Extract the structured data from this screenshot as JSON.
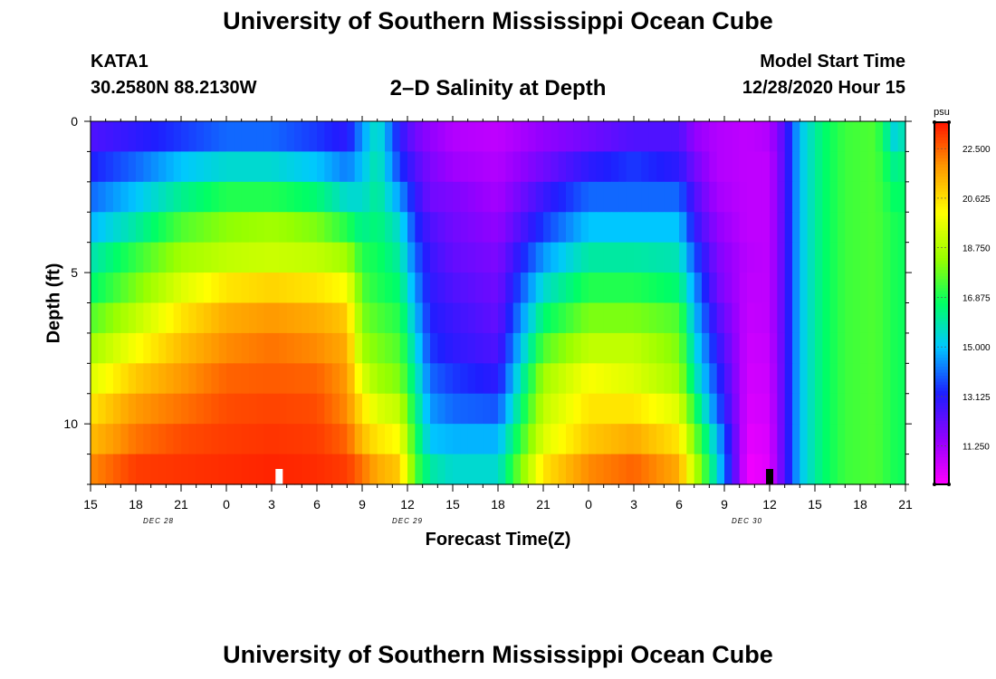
{
  "header": {
    "title": "University of Southern Mississippi Ocean Cube",
    "station": "KATA1",
    "coords": "30.2580N 88.2130W",
    "subtitle": "2–D Salinity at Depth",
    "start_label": "Model Start Time",
    "start_value": "12/28/2020 Hour 15",
    "footer_title": "University of Southern Mississippi Ocean Cube"
  },
  "chart_data": {
    "type": "heatmap",
    "title": "2–D Salinity at Depth",
    "xlabel": "Forecast Time(Z)",
    "ylabel": "Depth (ft)",
    "x_range_hours": [
      0,
      54
    ],
    "y_range_ft": [
      0,
      12
    ],
    "y_ticks": [
      "0",
      "5",
      "10"
    ],
    "x_ticks": [
      "15",
      "18",
      "21",
      "0",
      "3",
      "6",
      "9",
      "12",
      "15",
      "18",
      "21",
      "0",
      "3",
      "6",
      "9",
      "12",
      "15",
      "18",
      "21"
    ],
    "date_labels": [
      {
        "text": "DEC 28",
        "hour": 4.5
      },
      {
        "text": "DEC 29",
        "hour": 21
      },
      {
        "text": "DEC 30",
        "hour": 43.5
      }
    ],
    "time_markers": [
      {
        "hour": 12.5,
        "color": "#ffffff"
      },
      {
        "hour": 45,
        "color": "#000000"
      }
    ],
    "colorbar": {
      "unit": "psu",
      "min": 9.8,
      "max": 23.5,
      "tick_labels": [
        "22.500",
        "20.625",
        "18.750",
        "16.875",
        "15.000",
        "13.125",
        "11.250"
      ],
      "tick_values": [
        22.5,
        20.625,
        18.75,
        16.875,
        15.0,
        13.125,
        11.25
      ]
    },
    "depth_levels_ft": [
      0.5,
      1.5,
      2.5,
      3.5,
      4.5,
      5.5,
      6.5,
      7.5,
      8.5,
      9.5,
      10.5,
      11.5
    ],
    "profiles": [
      {
        "hour": 0,
        "salinity": [
          12.5,
          13.2,
          14.0,
          14.8,
          15.8,
          16.5,
          17.5,
          18.5,
          19.5,
          20.5,
          21.2,
          22.0
        ]
      },
      {
        "hour": 3,
        "salinity": [
          13.0,
          14.0,
          15.0,
          16.0,
          17.2,
          18.0,
          19.0,
          20.0,
          21.0,
          21.8,
          22.3,
          23.0
        ]
      },
      {
        "hour": 6,
        "salinity": [
          13.5,
          15.0,
          16.2,
          17.5,
          18.5,
          19.5,
          20.5,
          21.2,
          21.8,
          22.3,
          22.8,
          23.1
        ]
      },
      {
        "hour": 9,
        "salinity": [
          14.0,
          15.5,
          17.0,
          18.2,
          19.0,
          20.5,
          21.5,
          22.0,
          22.5,
          22.8,
          23.0,
          23.2
        ]
      },
      {
        "hour": 12,
        "salinity": [
          14.0,
          15.5,
          17.0,
          18.5,
          19.2,
          20.8,
          21.8,
          22.3,
          22.6,
          22.9,
          23.1,
          23.3
        ]
      },
      {
        "hour": 15,
        "salinity": [
          13.5,
          15.0,
          16.5,
          18.0,
          19.0,
          20.5,
          21.5,
          22.0,
          22.5,
          22.8,
          23.0,
          23.2
        ]
      },
      {
        "hour": 17,
        "salinity": [
          13.0,
          14.2,
          15.5,
          17.0,
          18.5,
          20.0,
          21.0,
          21.5,
          21.8,
          22.0,
          22.5,
          23.0
        ]
      },
      {
        "hour": 18,
        "salinity": [
          14.5,
          15.0,
          15.5,
          16.2,
          17.0,
          17.5,
          18.0,
          18.5,
          19.5,
          20.5,
          21.2,
          22.3
        ]
      },
      {
        "hour": 19,
        "salinity": [
          15.8,
          16.0,
          16.2,
          16.5,
          16.8,
          17.0,
          17.5,
          18.0,
          18.5,
          19.5,
          20.5,
          21.5
        ]
      },
      {
        "hour": 20.5,
        "salinity": [
          13.0,
          13.5,
          14.5,
          15.5,
          16.0,
          16.5,
          17.0,
          17.5,
          18.0,
          19.0,
          20.0,
          21.0
        ]
      },
      {
        "hour": 21.5,
        "salinity": [
          12.0,
          12.5,
          13.0,
          13.5,
          14.0,
          14.5,
          15.0,
          15.5,
          16.0,
          16.5,
          17.0,
          17.5
        ]
      },
      {
        "hour": 22.5,
        "salinity": [
          11.5,
          11.8,
          12.0,
          12.5,
          12.8,
          13.0,
          13.2,
          13.5,
          14.0,
          14.5,
          15.0,
          16.0
        ]
      },
      {
        "hour": 24,
        "salinity": [
          11.0,
          11.3,
          11.8,
          12.0,
          12.2,
          12.5,
          12.8,
          13.0,
          13.5,
          14.0,
          14.8,
          15.5
        ]
      },
      {
        "hour": 27,
        "salinity": [
          10.8,
          11.0,
          11.2,
          11.5,
          11.8,
          12.0,
          12.2,
          12.5,
          13.0,
          13.8,
          14.8,
          15.5
        ]
      },
      {
        "hour": 30,
        "salinity": [
          11.5,
          12.0,
          12.8,
          13.5,
          14.5,
          15.5,
          16.5,
          17.5,
          18.5,
          19.0,
          19.5,
          20.5
        ]
      },
      {
        "hour": 33,
        "salinity": [
          12.0,
          13.0,
          14.0,
          15.0,
          16.0,
          17.0,
          18.0,
          19.0,
          20.0,
          20.5,
          21.0,
          22.0
        ]
      },
      {
        "hour": 36,
        "salinity": [
          12.5,
          13.5,
          14.0,
          15.0,
          16.0,
          17.0,
          18.0,
          19.0,
          19.5,
          20.5,
          21.5,
          22.5
        ]
      },
      {
        "hour": 39,
        "salinity": [
          12.5,
          13.0,
          14.0,
          15.0,
          15.8,
          16.5,
          17.5,
          18.0,
          18.5,
          19.5,
          20.5,
          21.5
        ]
      },
      {
        "hour": 40,
        "salinity": [
          11.5,
          12.0,
          12.5,
          13.0,
          13.8,
          14.5,
          15.0,
          15.5,
          16.0,
          17.0,
          18.0,
          19.0
        ]
      },
      {
        "hour": 41.5,
        "salinity": [
          11.0,
          11.0,
          11.2,
          11.5,
          11.8,
          12.0,
          12.5,
          13.0,
          13.5,
          14.0,
          15.0,
          15.5
        ]
      },
      {
        "hour": 43.5,
        "salinity": [
          10.8,
          10.8,
          10.8,
          10.8,
          10.9,
          10.8,
          10.7,
          10.6,
          10.5,
          10.4,
          10.2,
          10.0
        ]
      },
      {
        "hour": 45,
        "salinity": [
          11.0,
          10.8,
          10.8,
          10.8,
          10.8,
          10.8,
          10.8,
          10.7,
          10.6,
          10.5,
          10.4,
          10.3
        ]
      },
      {
        "hour": 46,
        "salinity": [
          12.5,
          12.5,
          12.5,
          12.5,
          12.5,
          12.5,
          12.5,
          12.5,
          12.5,
          12.5,
          12.5,
          12.5
        ]
      },
      {
        "hour": 47,
        "salinity": [
          15.0,
          15.0,
          15.0,
          15.0,
          15.0,
          15.0,
          15.0,
          15.0,
          15.0,
          15.0,
          15.0,
          15.0
        ]
      },
      {
        "hour": 48.5,
        "salinity": [
          16.5,
          16.5,
          16.5,
          16.5,
          16.5,
          16.5,
          16.5,
          16.5,
          16.5,
          16.5,
          16.5,
          16.5
        ]
      },
      {
        "hour": 50,
        "salinity": [
          17.3,
          17.3,
          17.3,
          17.3,
          17.3,
          17.3,
          17.3,
          17.3,
          17.3,
          17.3,
          17.3,
          17.3
        ]
      },
      {
        "hour": 52,
        "salinity": [
          17.5,
          17.5,
          17.5,
          17.5,
          17.5,
          17.5,
          17.5,
          17.5,
          17.5,
          17.5,
          17.5,
          17.5
        ]
      },
      {
        "hour": 53.5,
        "salinity": [
          15.0,
          16.0,
          16.5,
          16.8,
          16.8,
          16.8,
          16.8,
          16.8,
          16.8,
          16.8,
          16.8,
          16.8
        ]
      },
      {
        "hour": 54,
        "salinity": [
          16.5,
          16.8,
          16.8,
          16.8,
          16.8,
          16.8,
          16.8,
          16.8,
          16.8,
          16.8,
          16.8,
          16.8
        ]
      }
    ]
  }
}
